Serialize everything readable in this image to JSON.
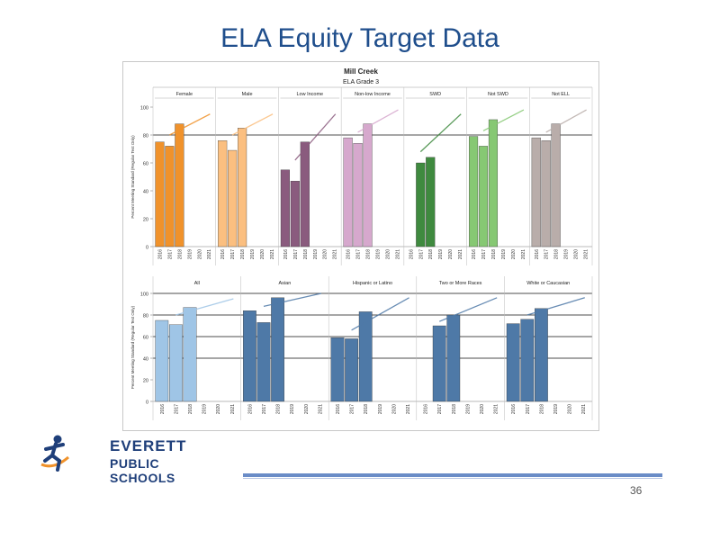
{
  "slide": {
    "title": "ELA Equity Target Data",
    "page_number": "36"
  },
  "logo": {
    "line1": "EVERETT",
    "line2": "PUBLIC SCHOOLS"
  },
  "chart_data": [
    {
      "type": "bar",
      "title": "Mill Creek",
      "subtitle": "ELA Grade 3",
      "ylabel": "Percent Meeting Standard (Regular Test Only)",
      "ylim": [
        0,
        100
      ],
      "yticks": [
        0,
        20,
        40,
        60,
        80,
        100
      ],
      "reference_lines": [
        80
      ],
      "categories": [
        "2016",
        "2017",
        "2018",
        "2019",
        "2020",
        "2021"
      ],
      "series": [
        {
          "name": "Female",
          "color": "#f0922b",
          "values": [
            75,
            72,
            88,
            null,
            null,
            null
          ],
          "target": [
            80,
            95
          ]
        },
        {
          "name": "Male",
          "color": "#fbbf80",
          "values": [
            76,
            69,
            85,
            null,
            null,
            null
          ],
          "target": [
            80,
            95
          ]
        },
        {
          "name": "Low Income",
          "color": "#8a5b7e",
          "values": [
            55,
            47,
            75,
            null,
            null,
            null
          ],
          "target": [
            62,
            95
          ]
        },
        {
          "name": "Non-low Income",
          "color": "#d6a8cd",
          "values": [
            78,
            74,
            88,
            null,
            null,
            null
          ],
          "target": [
            82,
            98
          ]
        },
        {
          "name": "SWD",
          "color": "#3f8a3f",
          "values": [
            null,
            60,
            64,
            null,
            null,
            null
          ],
          "target": [
            68,
            95
          ]
        },
        {
          "name": "Not SWD",
          "color": "#86c873",
          "values": [
            79,
            72,
            91,
            null,
            null,
            null
          ],
          "target": [
            83,
            98
          ]
        },
        {
          "name": "Not ELL",
          "color": "#b9adaa",
          "values": [
            78,
            76,
            88,
            null,
            null,
            null
          ],
          "target": [
            82,
            98
          ]
        }
      ]
    },
    {
      "type": "bar",
      "ylabel": "Percent Meeting Standard (Regular Test Only)",
      "ylim": [
        0,
        100
      ],
      "yticks": [
        0,
        20,
        40,
        60,
        80,
        100
      ],
      "reference_lines": [
        40,
        60,
        80,
        100
      ],
      "categories": [
        "2016",
        "2017",
        "2018",
        "2019",
        "2020",
        "2021"
      ],
      "series": [
        {
          "name": "All",
          "color": "#9fc5e6",
          "values": [
            75,
            71,
            87,
            null,
            null,
            null
          ],
          "target": [
            80,
            95
          ]
        },
        {
          "name": "Asian",
          "color": "#4e79a7",
          "values": [
            84,
            73,
            96,
            null,
            null,
            null
          ],
          "target": [
            88,
            100
          ]
        },
        {
          "name": "Hispanic or Latino",
          "color": "#4e79a7",
          "values": [
            59,
            58,
            83,
            null,
            null,
            null
          ],
          "target": [
            66,
            96
          ]
        },
        {
          "name": "Two or More Races",
          "color": "#4e79a7",
          "values": [
            null,
            70,
            80,
            null,
            null,
            null
          ],
          "target": [
            74,
            96
          ]
        },
        {
          "name": "White or Caucasian",
          "color": "#4e79a7",
          "values": [
            72,
            76,
            86,
            null,
            null,
            null
          ],
          "target": [
            80,
            96
          ]
        }
      ]
    }
  ]
}
